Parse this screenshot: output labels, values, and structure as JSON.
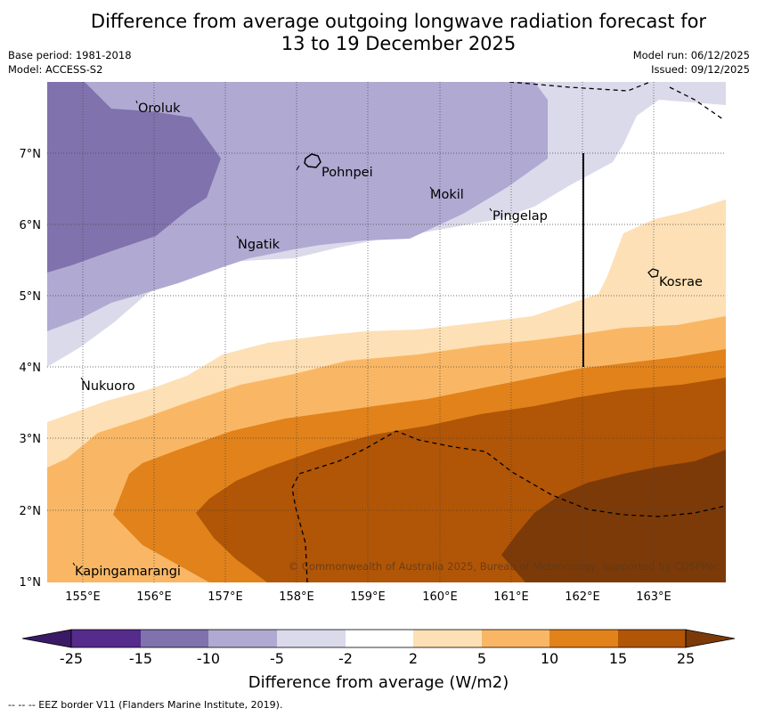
{
  "title_line1": "Difference from average outgoing longwave radiation forecast for",
  "title_line2": "13 to 19 December 2025",
  "base_period": "Base period: 1981-2018",
  "model": "Model: ACCESS-S2",
  "model_run": "Model run: 06/12/2025",
  "issued": "Issued: 09/12/2025",
  "copyright": "© Commonwealth of Australia 2025, Bureau of Meteorology, supported by COSPPac",
  "colorbar": {
    "label": "Difference from average (W/m2)",
    "ticks": [
      "-25",
      "-15",
      "-10",
      "-5",
      "-2",
      "2",
      "5",
      "10",
      "15",
      "25"
    ],
    "colors": [
      "#3a1a66",
      "#552b8c",
      "#8072ad",
      "#b0a9d2",
      "#dbdaeb",
      "#ffffff",
      "#fde0b5",
      "#f9b765",
      "#e1821b",
      "#b15506",
      "#7c3a08"
    ]
  },
  "footer": "--  --  -- EEZ border V11 (Flanders Marine Institute, 2019).",
  "map": {
    "lon_labels": [
      "155°E",
      "156°E",
      "157°E",
      "158°E",
      "159°E",
      "160°E",
      "161°E",
      "162°E",
      "163°E"
    ],
    "lat_labels": [
      "7°N",
      "6°N",
      "5°N",
      "4°N",
      "3°N",
      "2°N",
      "1°N"
    ],
    "places": [
      {
        "name": "Oroluk"
      },
      {
        "name": "Pohnpei"
      },
      {
        "name": "Mokil"
      },
      {
        "name": "Pingelap"
      },
      {
        "name": "Ngatik"
      },
      {
        "name": "Kosrae"
      },
      {
        "name": "Nukuoro"
      },
      {
        "name": "Kapingamarangi"
      }
    ]
  }
}
